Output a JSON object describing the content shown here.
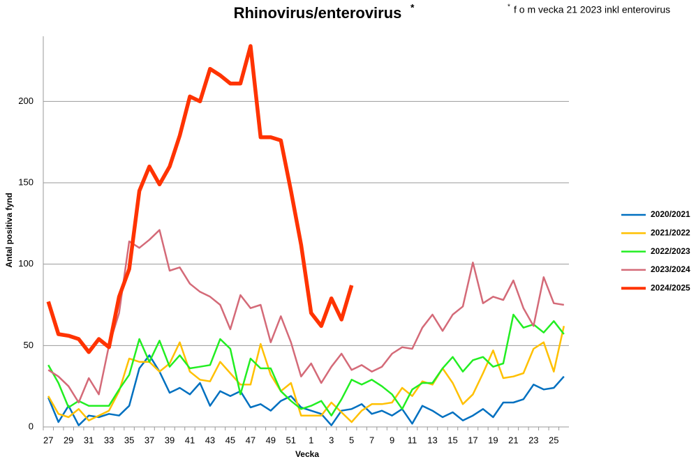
{
  "chart_data": {
    "type": "line",
    "title": "Rhinovirus/enterovirus",
    "title_mark": "*",
    "note_mark": "*",
    "note": "f o m vecka 21 2023 inkl enterovirus",
    "x_label": "Vecka",
    "y_label": "Antal positiva fynd",
    "categories": [
      27,
      null,
      29,
      null,
      31,
      null,
      33,
      null,
      35,
      null,
      37,
      null,
      39,
      null,
      41,
      null,
      43,
      null,
      45,
      null,
      47,
      null,
      49,
      null,
      51,
      null,
      1,
      null,
      3,
      null,
      5,
      null,
      7,
      null,
      9,
      null,
      11,
      null,
      13,
      null,
      15,
      null,
      17,
      null,
      19,
      null,
      21,
      null,
      23,
      null,
      25,
      null
    ],
    "ylim": [
      0,
      240
    ],
    "yticks": [
      0,
      50,
      100,
      150,
      200
    ],
    "grid": true,
    "legend": "right",
    "series": [
      {
        "name": "2020/2021",
        "color": "#0070c0",
        "width": 2.5,
        "values": [
          18,
          3,
          13,
          1,
          7,
          6,
          8,
          7,
          13,
          36,
          44,
          34,
          21,
          24,
          20,
          27,
          13,
          22,
          19,
          22,
          12,
          14,
          10,
          16,
          19,
          12,
          10,
          8,
          1,
          10,
          11,
          14,
          8,
          10,
          7,
          11,
          2,
          13,
          10,
          6,
          9,
          4,
          7,
          11,
          6,
          15,
          15,
          17,
          26,
          23,
          24,
          31
        ]
      },
      {
        "name": "2021/2022",
        "color": "#ffc000",
        "width": 2.5,
        "values": [
          19,
          8,
          6,
          11,
          4,
          7,
          10,
          22,
          42,
          40,
          40,
          34,
          39,
          52,
          34,
          29,
          28,
          40,
          33,
          26,
          26,
          51,
          32,
          22,
          27,
          7,
          7,
          7,
          15,
          9,
          3,
          10,
          14,
          14,
          15,
          24,
          19,
          28,
          26,
          36,
          27,
          14,
          20,
          33,
          47,
          30,
          31,
          33,
          48,
          52,
          34,
          62
        ]
      },
      {
        "name": "2022/2023",
        "color": "#22ee22",
        "width": 2.5,
        "values": [
          38,
          27,
          12,
          16,
          13,
          13,
          13,
          23,
          32,
          54,
          40,
          53,
          37,
          44,
          36,
          37,
          38,
          54,
          48,
          20,
          42,
          36,
          36,
          22,
          16,
          11,
          13,
          16,
          7,
          17,
          29,
          26,
          29,
          25,
          20,
          11,
          23,
          27,
          27,
          36,
          43,
          34,
          41,
          43,
          37,
          39,
          69,
          61,
          63,
          58,
          65,
          57
        ]
      },
      {
        "name": "2023/2024",
        "color": "#d46a78",
        "width": 2.5,
        "values": [
          35,
          31,
          25,
          15,
          30,
          20,
          50,
          70,
          114,
          110,
          115,
          121,
          96,
          98,
          88,
          83,
          80,
          75,
          60,
          81,
          73,
          75,
          52,
          68,
          52,
          31,
          39,
          27,
          37,
          45,
          35,
          38,
          34,
          37,
          45,
          49,
          48,
          61,
          69,
          59,
          69,
          74,
          101,
          76,
          80,
          78,
          90,
          73,
          62,
          92,
          76,
          75
        ]
      },
      {
        "name": "2024/2025",
        "color": "#ff3300",
        "width": 5.5,
        "values": [
          77,
          57,
          56,
          54,
          46,
          54,
          49,
          80,
          97,
          145,
          160,
          149,
          160,
          179,
          203,
          200,
          220,
          216,
          211,
          211,
          234,
          178,
          178,
          176,
          145,
          112,
          70,
          62,
          79,
          66,
          87,
          null,
          null,
          null,
          null,
          null,
          null,
          null,
          null,
          null,
          null,
          null,
          null,
          null,
          null,
          null,
          null,
          null,
          null,
          null,
          null,
          null
        ]
      }
    ]
  }
}
